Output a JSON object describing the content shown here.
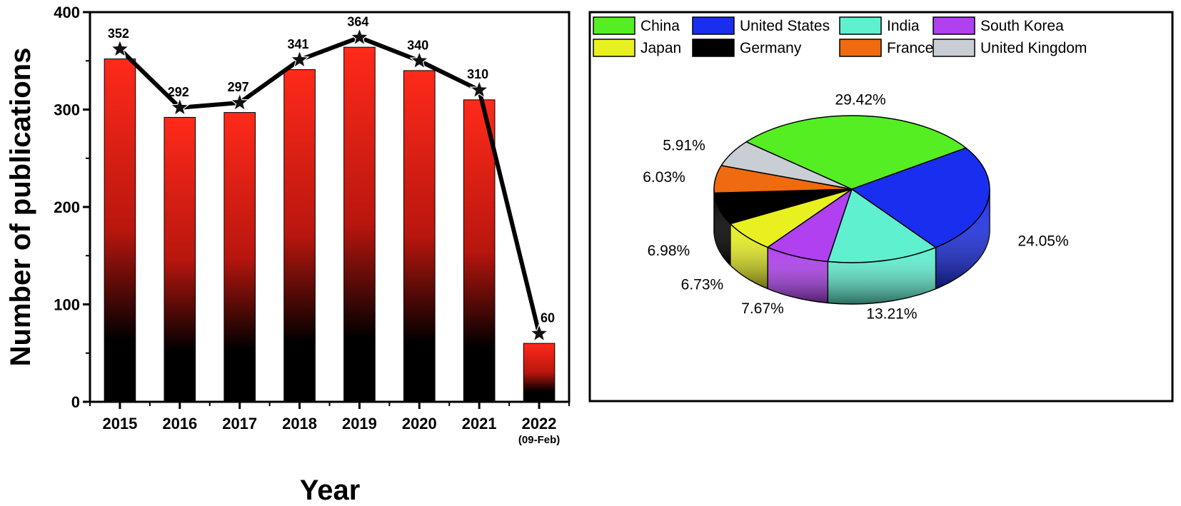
{
  "chart_data": [
    {
      "type": "bar",
      "title": "",
      "xlabel": "Year",
      "ylabel": "Number of publications",
      "categories": [
        "2015",
        "2016",
        "2017",
        "2018",
        "2019",
        "2020",
        "2021",
        "2022"
      ],
      "category_sublabels": [
        "",
        "",
        "",
        "",
        "",
        "",
        "",
        "(09-Feb)"
      ],
      "values": [
        352,
        292,
        297,
        341,
        364,
        340,
        310,
        60
      ],
      "data_labels": [
        "352",
        "292",
        "297",
        "341",
        "364",
        "340",
        "310",
        "60"
      ],
      "ylim": [
        0,
        400
      ],
      "yticks": [
        "0",
        "100",
        "200",
        "300",
        "400"
      ],
      "overlay": "line with star markers",
      "colors": {
        "bar_top": "#ff2a1a",
        "bar_bottom": "#000000",
        "line": "#000000"
      }
    },
    {
      "type": "pie",
      "title": "",
      "legend_position": "top",
      "slices": [
        {
          "name": "China",
          "value": 29.42,
          "label": "29.42%",
          "color": "#55ee22"
        },
        {
          "name": "United States",
          "value": 24.05,
          "label": "24.05%",
          "color": "#1a2ef0"
        },
        {
          "name": "India",
          "value": 13.21,
          "label": "13.21%",
          "color": "#5ff0d0"
        },
        {
          "name": "South Korea",
          "value": 7.67,
          "label": "7.67%",
          "color": "#b040f0"
        },
        {
          "name": "Japan",
          "value": 6.73,
          "label": "6.73%",
          "color": "#e8f020"
        },
        {
          "name": "Germany",
          "value": 6.98,
          "label": "6.98%",
          "color": "#000000"
        },
        {
          "name": "France",
          "value": 6.03,
          "label": "6.03%",
          "color": "#f06a10"
        },
        {
          "name": "United Kingdom",
          "value": 5.91,
          "label": "5.91%",
          "color": "#c8ced4"
        }
      ]
    }
  ]
}
